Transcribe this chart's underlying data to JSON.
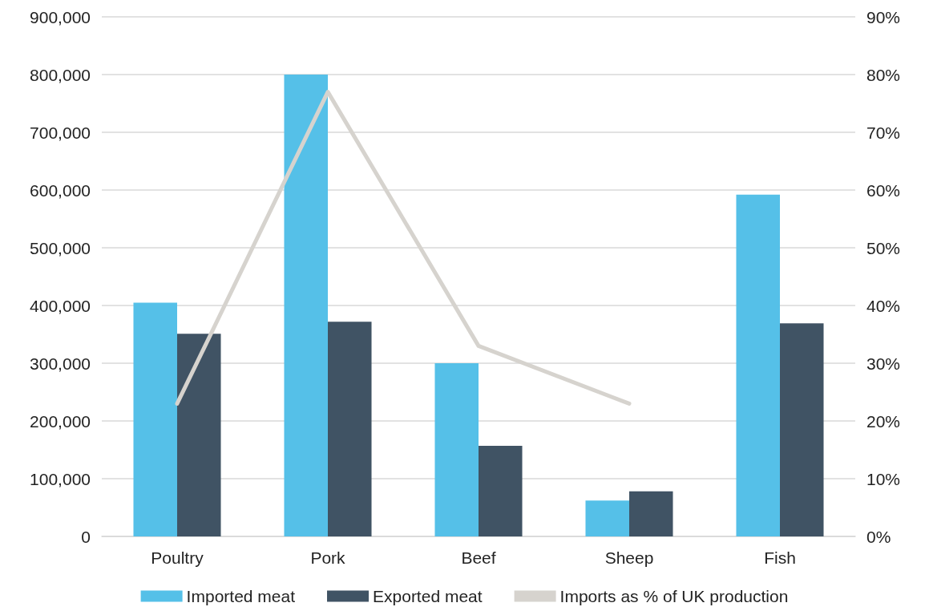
{
  "chart_data": {
    "type": "bar",
    "categories": [
      "Poultry",
      "Pork",
      "Beef",
      "Sheep",
      "Fish"
    ],
    "series": [
      {
        "name": "Imported meat",
        "color": "#55c0e8",
        "values": [
          405000,
          800000,
          300000,
          62000,
          592000
        ]
      },
      {
        "name": "Exported meat",
        "color": "#405364",
        "values": [
          351000,
          372000,
          157000,
          78000,
          369000
        ]
      },
      {
        "name": "Imports as % of UK production",
        "type": "line",
        "axis": "y2",
        "color": "#d6d3ce",
        "values": [
          23,
          77,
          33,
          23,
          null
        ]
      }
    ],
    "ylim": [
      0,
      900000
    ],
    "yticks": [
      0,
      {
        "value": 100000,
        "label": "100,000"
      },
      {
        "value": 200000,
        "label": "200,000"
      },
      {
        "value": 300000,
        "label": "300,000"
      },
      {
        "value": 400000,
        "label": "400,000"
      },
      {
        "value": 500000,
        "label": "500,000"
      },
      {
        "value": 600000,
        "label": "600,000"
      },
      {
        "value": 700000,
        "label": "700,000"
      },
      {
        "value": 800000,
        "label": "800,000"
      },
      {
        "value": 900000,
        "label": "900,000"
      }
    ],
    "y2lim": [
      0,
      90
    ],
    "y2ticks": [
      {
        "value": 0,
        "label": "0%"
      },
      {
        "value": 10,
        "label": "10%"
      },
      {
        "value": 20,
        "label": "20%"
      },
      {
        "value": 30,
        "label": "30%"
      },
      {
        "value": 40,
        "label": "40%"
      },
      {
        "value": 50,
        "label": "50%"
      },
      {
        "value": 60,
        "label": "60%"
      },
      {
        "value": 70,
        "label": "70%"
      },
      {
        "value": 80,
        "label": "80%"
      },
      {
        "value": 90,
        "label": "90%"
      }
    ],
    "grid": "y",
    "legend": "bottom",
    "marker": "none",
    "line_style": "solid"
  }
}
